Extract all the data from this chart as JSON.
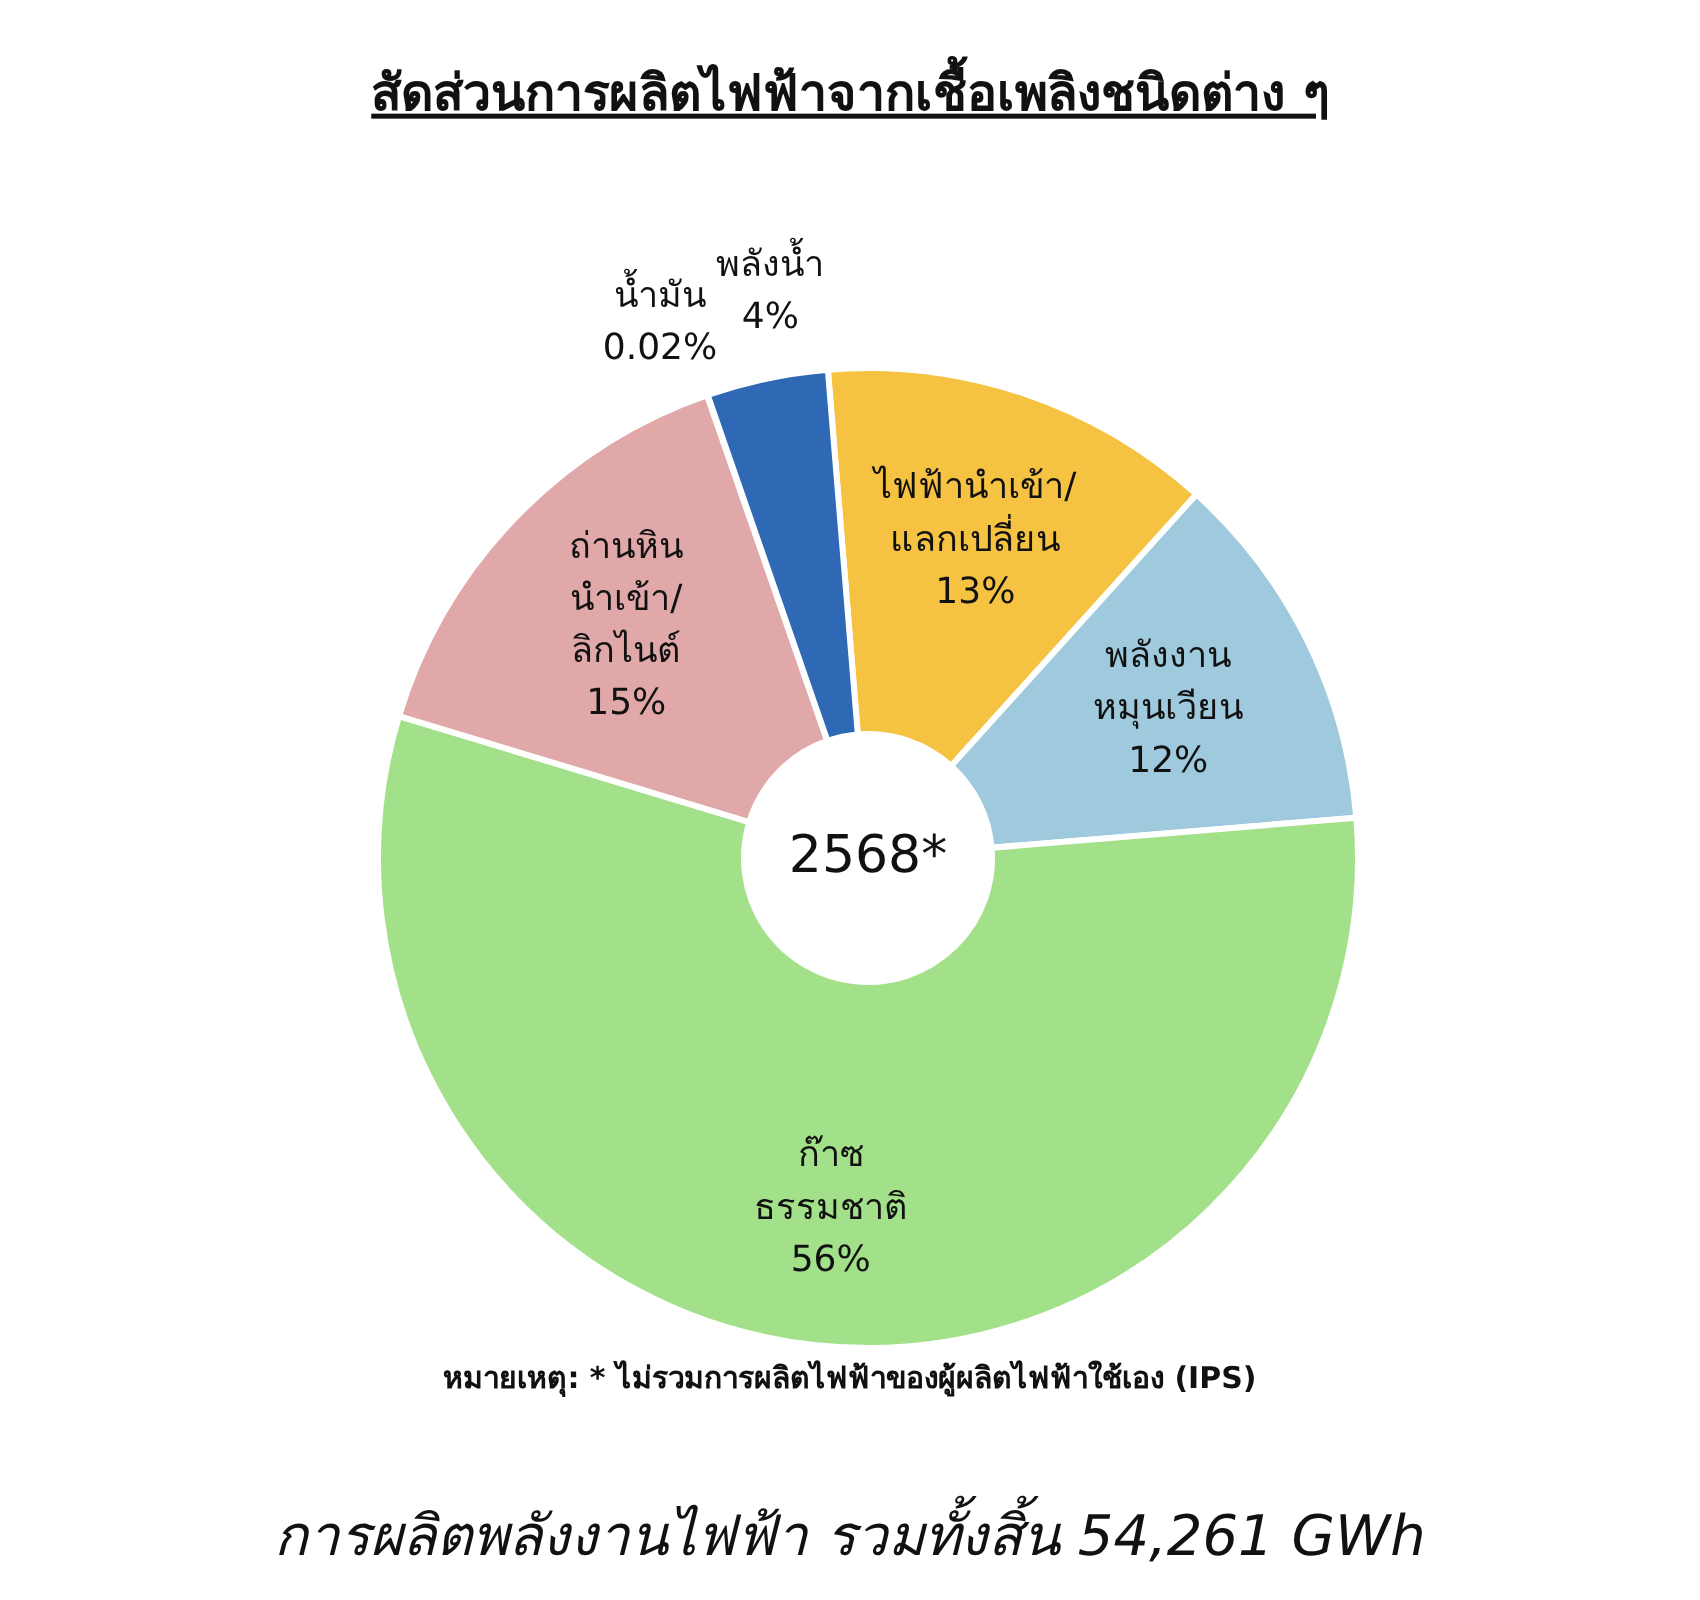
{
  "chart_data": {
    "type": "donut",
    "title": "สัดส่วนการผลิตไฟฟ้าจากเชื้อเพลิงชนิดต่าง ๆ",
    "categories": [
      "ไฟฟ้านำเข้า/\nแลกเปลี่ยน",
      "พลังงาน\nหมุนเวียน",
      "ก๊าซ\nธรรมชาติ",
      "ถ่านหิน\nนำเข้า/\nลิกไนต์",
      "น้ำมัน",
      "พลังน้ำ"
    ],
    "values": [
      13,
      12,
      56,
      15,
      0.02,
      4
    ],
    "value_labels": [
      "13%",
      "12%",
      "56%",
      "15%",
      "0.02%",
      "4%"
    ],
    "colors": [
      "#f5c242",
      "#9fc9dc",
      "#a3e08a",
      "#e0a8a8",
      "#7a5a3a",
      "#2f69b5"
    ],
    "annotations": [
      "2568*",
      "หมายเหตุ: * ไม่รวมการผลิตไฟฟ้าของผู้ผลิตไฟฟ้าใช้เอง (IPS)",
      "การผลิตพลังงานไฟฟ้า รวมทั้งสิ้น 54,261 GWh"
    ]
  }
}
